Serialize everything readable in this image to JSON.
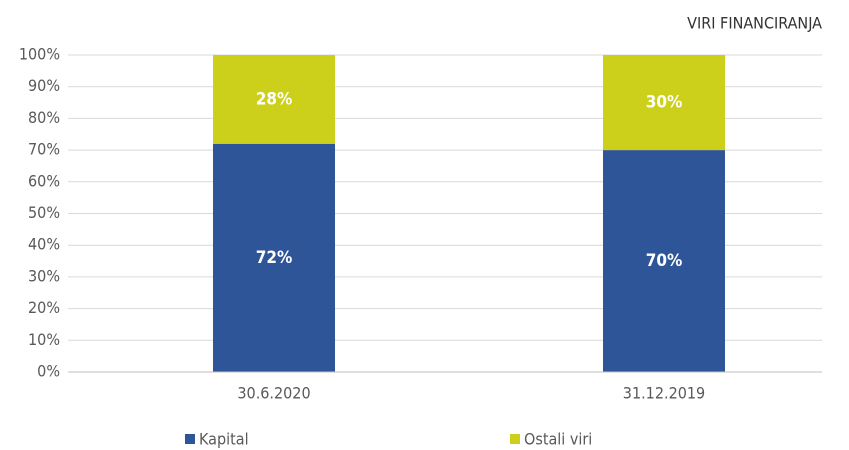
{
  "chart_data": {
    "type": "stacked_bar",
    "title": "VIRI FINANCIRANJA",
    "categories": [
      "30.6.2020",
      "31.12.2019"
    ],
    "series": [
      {
        "name": "Kapital",
        "color": "#2e5597",
        "values": [
          72,
          70
        ],
        "value_labels": [
          "72%",
          "70%"
        ]
      },
      {
        "name": "Ostali viri",
        "color": "#ccd01a",
        "values": [
          28,
          30
        ],
        "value_labels": [
          "28%",
          "30%"
        ]
      }
    ],
    "ylim": [
      0,
      100
    ],
    "yticks": [
      {
        "value": 0,
        "label": "0%"
      },
      {
        "value": 10,
        "label": "10%"
      },
      {
        "value": 20,
        "label": "20%"
      },
      {
        "value": 30,
        "label": "30%"
      },
      {
        "value": 40,
        "label": "40%"
      },
      {
        "value": 50,
        "label": "50%"
      },
      {
        "value": 60,
        "label": "60%"
      },
      {
        "value": 70,
        "label": "70%"
      },
      {
        "value": 80,
        "label": "80%"
      },
      {
        "value": 90,
        "label": "90%"
      },
      {
        "value": 100,
        "label": "100%"
      }
    ],
    "grid": true,
    "legend": "bottom"
  }
}
